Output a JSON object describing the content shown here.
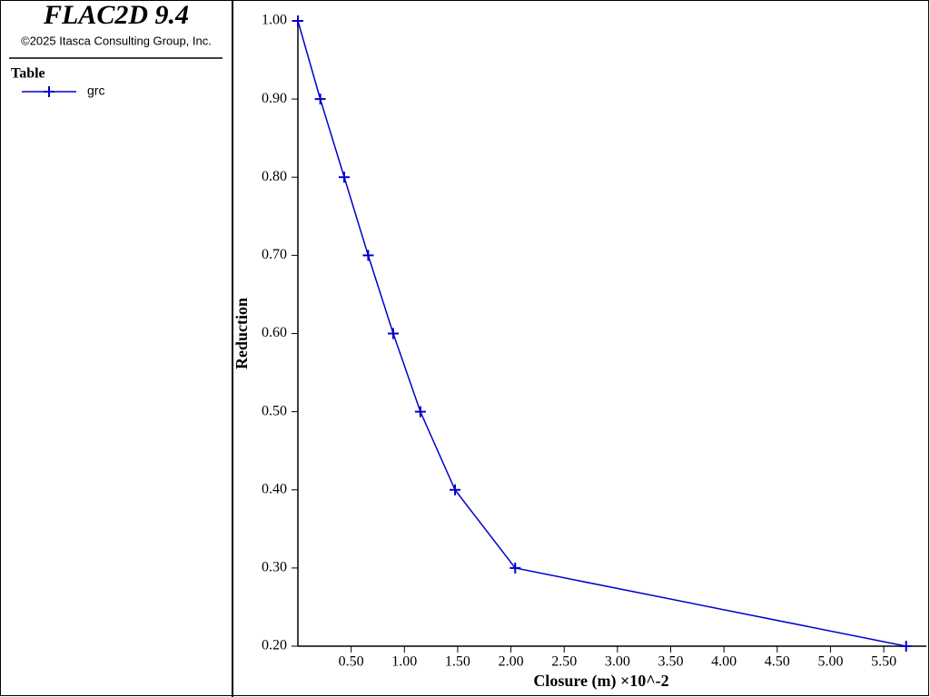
{
  "header": {
    "title": "FLAC2D 9.4",
    "copyright": "©2025 Itasca Consulting Group, Inc.",
    "legend_title": "Table"
  },
  "chart_data": {
    "type": "line",
    "x_label": "Closure (m) ×10^-2",
    "y_label": "Reduction",
    "x": [
      0,
      0.21,
      0.435,
      0.66,
      0.895,
      1.15,
      1.475,
      2.04,
      5.71
    ],
    "series": [
      {
        "name": "grc",
        "color": "#0000cc",
        "values": [
          1.0,
          0.9,
          0.8,
          0.7,
          0.6,
          0.5,
          0.4,
          0.3,
          0.2
        ]
      }
    ],
    "marker": "plus",
    "xlim": [
      0,
      5.9
    ],
    "ylim": [
      0.2,
      1.0
    ],
    "xticks": [
      {
        "value": 0.5,
        "label": "0.50"
      },
      {
        "value": 1,
        "label": "1.00"
      },
      {
        "value": 1.5,
        "label": "1.50"
      },
      {
        "value": 2,
        "label": "2.00"
      },
      {
        "value": 2.5,
        "label": "2.50"
      },
      {
        "value": 3,
        "label": "3.00"
      },
      {
        "value": 3.5,
        "label": "3.50"
      },
      {
        "value": 4,
        "label": "4.00"
      },
      {
        "value": 4.5,
        "label": "4.50"
      },
      {
        "value": 5,
        "label": "5.00"
      },
      {
        "value": 5.5,
        "label": "5.50"
      }
    ],
    "yticks": [
      {
        "value": 0.2,
        "label": "0.20"
      },
      {
        "value": 0.3,
        "label": "0.30"
      },
      {
        "value": 0.4,
        "label": "0.40"
      },
      {
        "value": 0.5,
        "label": "0.50"
      },
      {
        "value": 0.6,
        "label": "0.60"
      },
      {
        "value": 0.7,
        "label": "0.70"
      },
      {
        "value": 0.8,
        "label": "0.80"
      },
      {
        "value": 0.9,
        "label": "0.90"
      },
      {
        "value": 1.0,
        "label": "1.00"
      }
    ]
  }
}
